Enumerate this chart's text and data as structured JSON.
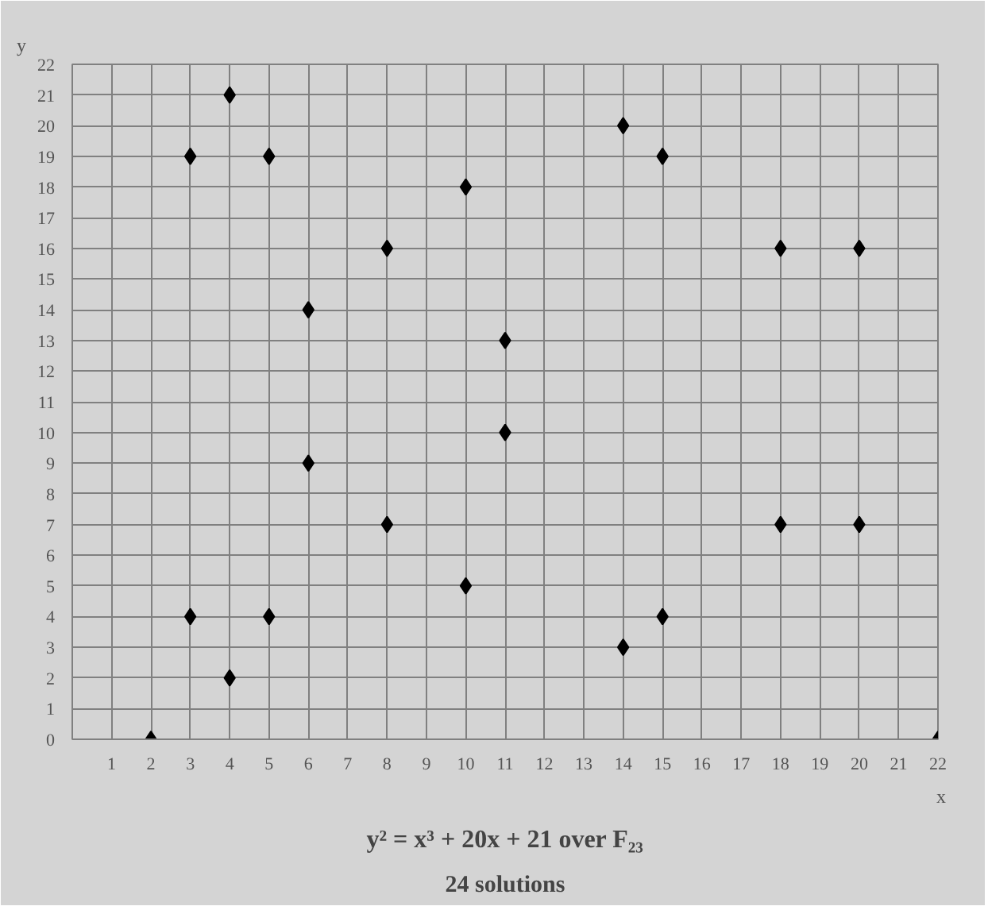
{
  "chart_data": {
    "type": "scatter",
    "title": "y² = x³ + 20x + 21 over F₂₃",
    "subtitle": "24 solutions",
    "xlabel": "x",
    "ylabel": "y",
    "x": [
      2,
      3,
      3,
      4,
      4,
      5,
      5,
      6,
      6,
      8,
      8,
      10,
      10,
      11,
      11,
      14,
      14,
      15,
      15,
      18,
      18,
      20,
      20,
      22
    ],
    "series": [
      {
        "color": "#000000",
        "values": [
          0,
          4,
          19,
          2,
          21,
          4,
          19,
          9,
          14,
          7,
          16,
          5,
          18,
          10,
          13,
          3,
          20,
          4,
          19,
          7,
          16,
          7,
          16,
          0
        ]
      }
    ],
    "xlim": [
      0,
      22
    ],
    "ylim": [
      0,
      22
    ],
    "xticks": [
      {
        "value": 0,
        "label": null
      },
      1,
      2,
      3,
      4,
      5,
      6,
      7,
      8,
      9,
      10,
      11,
      12,
      13,
      14,
      15,
      16,
      17,
      18,
      19,
      20,
      21,
      22
    ],
    "yticks": [
      0,
      1,
      2,
      3,
      4,
      5,
      6,
      7,
      8,
      9,
      10,
      11,
      12,
      13,
      14,
      15,
      16,
      17,
      18,
      19,
      20,
      21,
      22
    ],
    "grid": true,
    "marker": "diamond"
  }
}
